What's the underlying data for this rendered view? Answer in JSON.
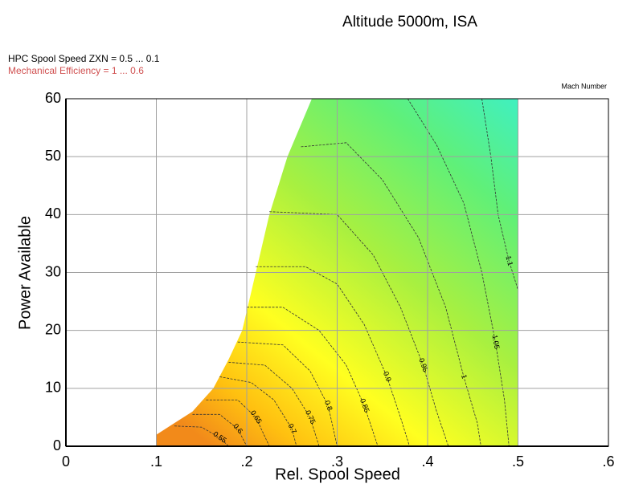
{
  "chart_data": {
    "type": "contour",
    "title": "Altitude 5000m, ISA",
    "annotations": [
      "HPC Spool Speed ZXN = 0.5 ... 0.1",
      "Mechanical Efficiency = 1 ... 0.6"
    ],
    "colorbar_label": "Mach Number",
    "x_label": "Rel. Spool Speed",
    "y_label": "Power Available",
    "xlim": [
      0,
      0.6
    ],
    "ylim": [
      0,
      60
    ],
    "xticks": [
      0,
      {
        "value": 0.1,
        "label": ".1"
      },
      {
        "value": 0.2,
        "label": ".2"
      },
      {
        "value": 0.3,
        "label": ".3"
      },
      {
        "value": 0.4,
        "label": ".4"
      },
      {
        "value": 0.5,
        "label": ".5"
      },
      {
        "value": 0.6,
        "label": ".6"
      }
    ],
    "yticks": [
      0,
      10,
      20,
      30,
      40,
      50,
      60
    ],
    "grid": true,
    "region": {
      "x": [
        0.1,
        0.1,
        0.12,
        0.14,
        0.163,
        0.18,
        0.195,
        0.21,
        0.225,
        0.245,
        0.272,
        0.5,
        0.5
      ],
      "y": [
        0,
        2,
        4,
        6,
        10,
        15,
        20,
        30,
        40,
        50,
        60,
        60,
        0
      ]
    },
    "contours": [
      {
        "level": 1.1,
        "x": [
          0.46,
          0.47,
          0.478,
          0.49,
          0.5
        ],
        "y": [
          60,
          50,
          40,
          32,
          27
        ]
      },
      {
        "level": 1.05,
        "x": [
          0.378,
          0.41,
          0.44,
          0.46,
          0.475,
          0.485,
          0.49
        ],
        "y": [
          60,
          52,
          42,
          30,
          18,
          8,
          0
        ]
      },
      {
        "level": 1,
        "x": [
          0.26,
          0.31,
          0.35,
          0.39,
          0.42,
          0.44,
          0.455,
          0.459
        ],
        "y": [
          51.7,
          52.4,
          46,
          36,
          24,
          12,
          4,
          0
        ]
      },
      {
        "level": 0.95,
        "x": [
          0.225,
          0.3,
          0.34,
          0.37,
          0.395,
          0.41,
          0.423
        ],
        "y": [
          40.5,
          40,
          33,
          24,
          14,
          6,
          0
        ]
      },
      {
        "level": 0.9,
        "x": [
          0.21,
          0.265,
          0.3,
          0.33,
          0.355,
          0.37,
          0.38
        ],
        "y": [
          31,
          31,
          28,
          21,
          12,
          5,
          0
        ]
      },
      {
        "level": 0.85,
        "x": [
          0.2,
          0.24,
          0.28,
          0.31,
          0.33,
          0.345
        ],
        "y": [
          24,
          24,
          20,
          14,
          7,
          0
        ]
      },
      {
        "level": 0.8,
        "x": [
          0.19,
          0.24,
          0.27,
          0.29,
          0.3
        ],
        "y": [
          18,
          17.5,
          13,
          7,
          0
        ]
      },
      {
        "level": 0.75,
        "x": [
          0.18,
          0.22,
          0.25,
          0.27,
          0.28
        ],
        "y": [
          14.5,
          14,
          10,
          5,
          0
        ]
      },
      {
        "level": 0.7,
        "x": [
          0.17,
          0.205,
          0.23,
          0.25,
          0.255
        ],
        "y": [
          12,
          11,
          8,
          3,
          0
        ]
      },
      {
        "level": 0.65,
        "x": [
          0.155,
          0.19,
          0.21,
          0.225
        ],
        "y": [
          8,
          8,
          5,
          0
        ]
      },
      {
        "level": 0.6,
        "x": [
          0.14,
          0.17,
          0.19,
          0.2
        ],
        "y": [
          5.5,
          5.5,
          3,
          0
        ]
      },
      {
        "level": 0.55,
        "x": [
          0.12,
          0.15,
          0.17,
          0.18
        ],
        "y": [
          3.5,
          3.3,
          1.5,
          0
        ]
      }
    ]
  }
}
